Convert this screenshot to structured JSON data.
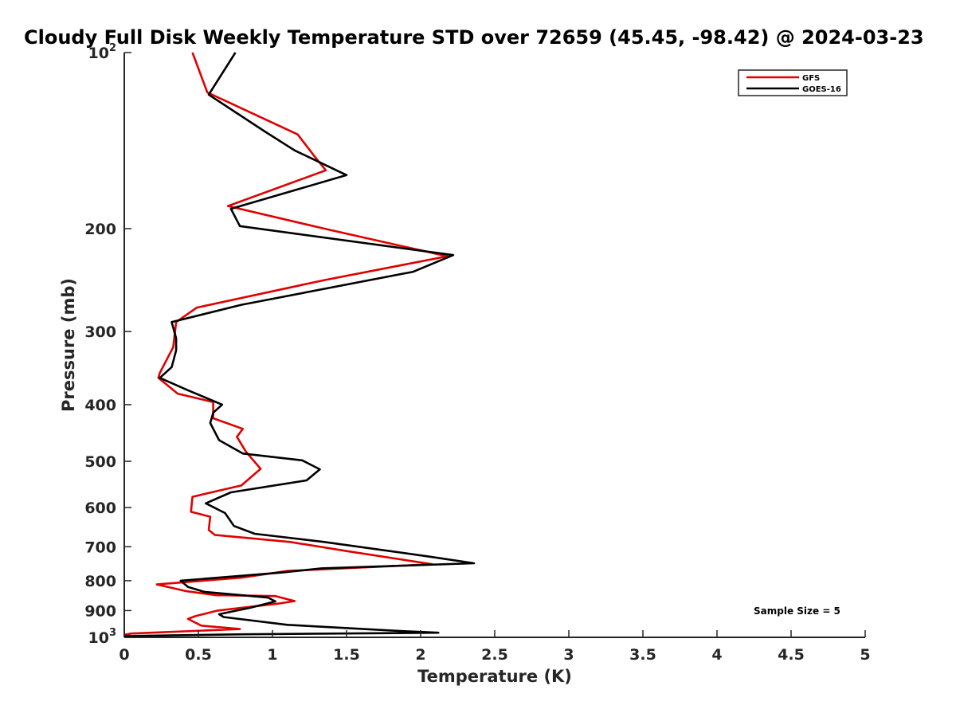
{
  "chart_data": {
    "type": "line",
    "title": "Cloudy Full Disk Weekly Temperature STD over 72659 (45.45, -98.42) @ 2024-03-23",
    "xlabel": "Temperature (K)",
    "ylabel": "Pressure (mb)",
    "xlim": [
      0,
      5
    ],
    "ylim": [
      1000,
      100
    ],
    "y_scale": "log",
    "x_ticks": [
      "0",
      "0.5",
      "1",
      "1.5",
      "2",
      "2.5",
      "3",
      "3.5",
      "4",
      "4.5",
      "5"
    ],
    "y_ticks": [
      {
        "value": 100,
        "base": "10",
        "sup": "2"
      },
      {
        "value": 200,
        "label": "200"
      },
      {
        "value": 300,
        "label": "300"
      },
      {
        "value": 400,
        "label": "400"
      },
      {
        "value": 500,
        "label": "500"
      },
      {
        "value": 600,
        "label": "600"
      },
      {
        "value": 700,
        "label": "700"
      },
      {
        "value": 800,
        "label": "800"
      },
      {
        "value": 900,
        "label": "900"
      },
      {
        "value": 1000,
        "base": "10",
        "sup": "3"
      }
    ],
    "legend_position": "top-right",
    "annotation": "Sample Size = 5",
    "series": [
      {
        "name": "GFS",
        "color": "#e00000",
        "points": [
          [
            0.46,
            100
          ],
          [
            0.56,
            117
          ],
          [
            1.17,
            138
          ],
          [
            1.28,
            150
          ],
          [
            1.36,
            159
          ],
          [
            0.7,
            183
          ],
          [
            1.35,
            200
          ],
          [
            2.18,
            223
          ],
          [
            1.35,
            245
          ],
          [
            0.49,
            273
          ],
          [
            0.35,
            289
          ],
          [
            0.33,
            319
          ],
          [
            0.24,
            353
          ],
          [
            0.23,
            360
          ],
          [
            0.36,
            383
          ],
          [
            0.6,
            396
          ],
          [
            0.6,
            422
          ],
          [
            0.8,
            440
          ],
          [
            0.76,
            454
          ],
          [
            0.82,
            481
          ],
          [
            0.92,
            515
          ],
          [
            0.79,
            550
          ],
          [
            0.46,
            575
          ],
          [
            0.45,
            610
          ],
          [
            0.58,
            622
          ],
          [
            0.57,
            655
          ],
          [
            0.61,
            668
          ],
          [
            1.12,
            687
          ],
          [
            1.5,
            712
          ],
          [
            2.08,
            750
          ],
          [
            1.1,
            770
          ],
          [
            0.8,
            790
          ],
          [
            0.22,
            812
          ],
          [
            0.42,
            834
          ],
          [
            0.62,
            847
          ],
          [
            1.02,
            850
          ],
          [
            1.15,
            867
          ],
          [
            1.05,
            875
          ],
          [
            0.63,
            900
          ],
          [
            0.48,
            920
          ],
          [
            0.43,
            930
          ],
          [
            0.52,
            955
          ],
          [
            0.78,
            968
          ],
          [
            0.05,
            985
          ],
          [
            0.0,
            990
          ]
        ]
      },
      {
        "name": "GOES-16",
        "color": "#000000",
        "points": [
          [
            0.75,
            100
          ],
          [
            0.57,
            118
          ],
          [
            0.94,
            136
          ],
          [
            1.15,
            147
          ],
          [
            1.5,
            162
          ],
          [
            0.72,
            185
          ],
          [
            0.78,
            198
          ],
          [
            2.22,
            222
          ],
          [
            1.95,
            237
          ],
          [
            0.79,
            270
          ],
          [
            0.32,
            289
          ],
          [
            0.35,
            308
          ],
          [
            0.35,
            323
          ],
          [
            0.32,
            345
          ],
          [
            0.24,
            360
          ],
          [
            0.43,
            378
          ],
          [
            0.66,
            400
          ],
          [
            0.6,
            413
          ],
          [
            0.58,
            430
          ],
          [
            0.64,
            460
          ],
          [
            0.8,
            485
          ],
          [
            1.2,
            498
          ],
          [
            1.32,
            516
          ],
          [
            1.23,
            539
          ],
          [
            0.72,
            565
          ],
          [
            0.55,
            590
          ],
          [
            0.68,
            613
          ],
          [
            0.74,
            645
          ],
          [
            0.88,
            665
          ],
          [
            1.35,
            687
          ],
          [
            2.05,
            727
          ],
          [
            2.36,
            747
          ],
          [
            1.33,
            762
          ],
          [
            1.06,
            775
          ],
          [
            0.38,
            800
          ],
          [
            0.43,
            820
          ],
          [
            0.54,
            836
          ],
          [
            0.97,
            855
          ],
          [
            1.02,
            868
          ],
          [
            0.85,
            890
          ],
          [
            0.64,
            913
          ],
          [
            0.67,
            923
          ],
          [
            1.1,
            952
          ],
          [
            1.85,
            975
          ],
          [
            2.12,
            982
          ],
          [
            0.8,
            988
          ],
          [
            0.0,
            995
          ]
        ]
      }
    ]
  }
}
